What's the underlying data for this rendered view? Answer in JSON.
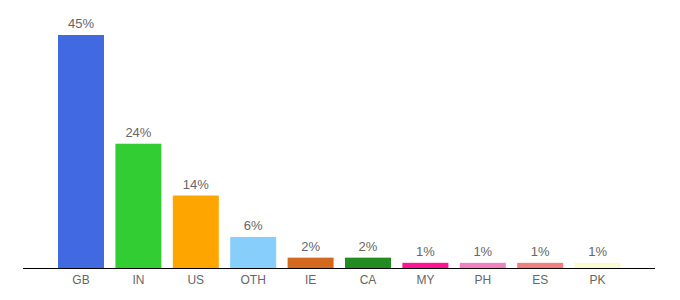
{
  "chart_data": {
    "type": "bar",
    "categories": [
      "GB",
      "IN",
      "US",
      "OTH",
      "IE",
      "CA",
      "MY",
      "PH",
      "ES",
      "PK"
    ],
    "values": [
      45,
      24,
      14,
      6,
      2,
      2,
      1,
      1,
      1,
      1
    ],
    "value_labels": [
      "45%",
      "24%",
      "14%",
      "6%",
      "2%",
      "2%",
      "1%",
      "1%",
      "1%",
      "1%"
    ],
    "colors": [
      "#4169e1",
      "#32cd32",
      "#ffa500",
      "#87cefa",
      "#d2691e",
      "#228b22",
      "#ff1493",
      "#f080c0",
      "#f08080",
      "#fafad2"
    ],
    "ylim": [
      0,
      45
    ],
    "data_labels": true,
    "grid": false,
    "tick_labels": "x"
  }
}
